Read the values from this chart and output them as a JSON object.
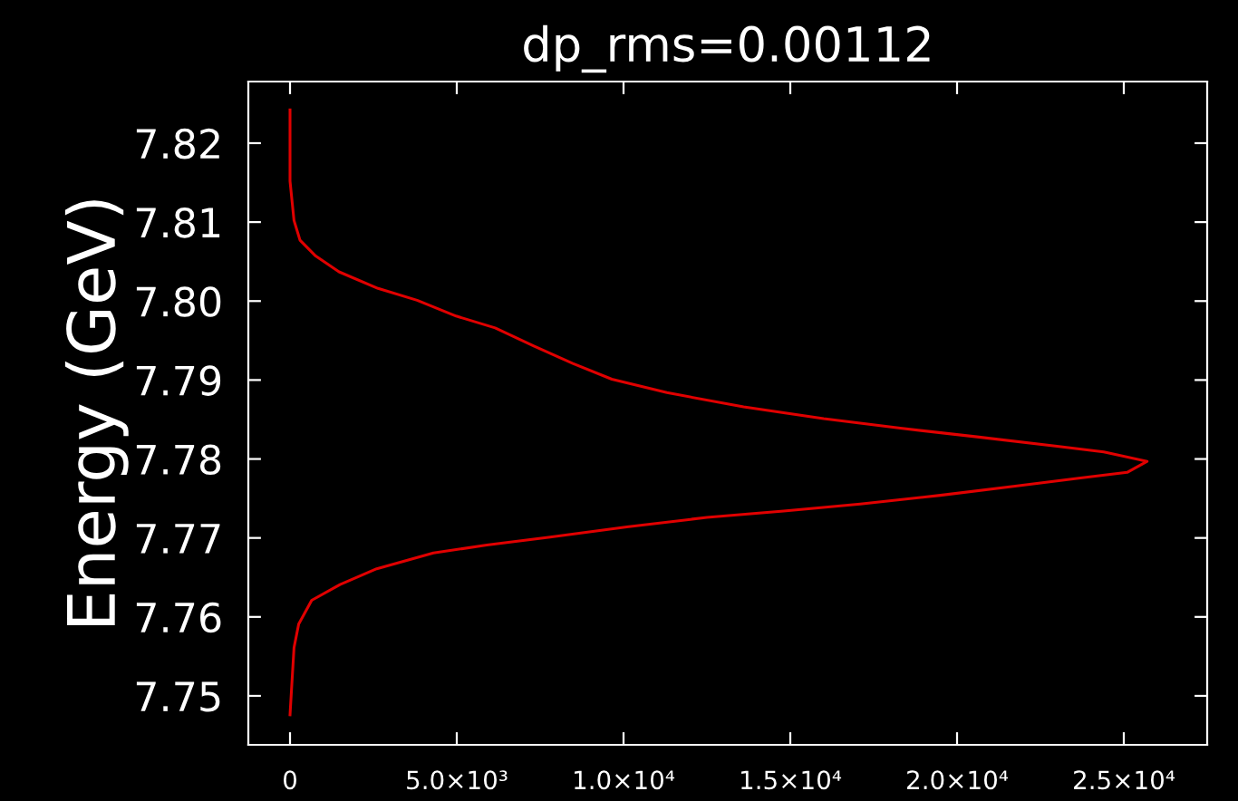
{
  "chart_data": {
    "type": "line",
    "title": "dp_rms=0.00112",
    "ylabel": "Energy (GeV)",
    "series": [
      {
        "color": "#e00000",
        "x": [
          0,
          0,
          120,
          300,
          770,
          1470,
          2640,
          3810,
          4980,
          6150,
          7310,
          8480,
          9650,
          11300,
          13600,
          16000,
          18300,
          20600,
          23000,
          24400,
          25700,
          25100,
          23700,
          21800,
          19500,
          17100,
          14800,
          12500,
          10100,
          7800,
          5900,
          4300,
          2600,
          1500,
          650,
          260,
          120,
          0
        ],
        "values": [
          7.8242,
          7.8152,
          7.8102,
          7.8077,
          7.8057,
          7.8037,
          7.8016,
          7.8001,
          7.7981,
          7.7966,
          7.7943,
          7.7921,
          7.7901,
          7.7884,
          7.7866,
          7.7851,
          7.7839,
          7.7828,
          7.7816,
          7.7809,
          7.7797,
          7.7783,
          7.7776,
          7.7766,
          7.7754,
          7.7743,
          7.7734,
          7.7726,
          7.7714,
          7.7701,
          7.7691,
          7.7681,
          7.7661,
          7.7641,
          7.7621,
          7.7591,
          7.7561,
          7.7476
        ]
      }
    ],
    "xlim": [
      -1250,
      27500
    ],
    "ylim": [
      7.7438,
      7.8278
    ],
    "xticks": [
      0,
      {
        "value": 5000,
        "label": "5.0×10³"
      },
      {
        "value": 10000,
        "label": "1.0×10⁴"
      },
      {
        "value": 15000,
        "label": "1.5×10⁴"
      },
      {
        "value": 20000,
        "label": "2.0×10⁴"
      },
      {
        "value": 25000,
        "label": "2.5×10⁴"
      }
    ],
    "yticks": [
      {
        "value": 7.75,
        "label": "7.75"
      },
      {
        "value": 7.76,
        "label": "7.76"
      },
      {
        "value": 7.77,
        "label": "7.77"
      },
      {
        "value": 7.78,
        "label": "7.78"
      },
      {
        "value": 7.79,
        "label": "7.79"
      },
      {
        "value": 7.8,
        "label": "7.80"
      },
      {
        "value": 7.81,
        "label": "7.81"
      },
      {
        "value": 7.82,
        "label": "7.82"
      }
    ],
    "grid": false,
    "marker": "none",
    "line_style": "solid"
  }
}
